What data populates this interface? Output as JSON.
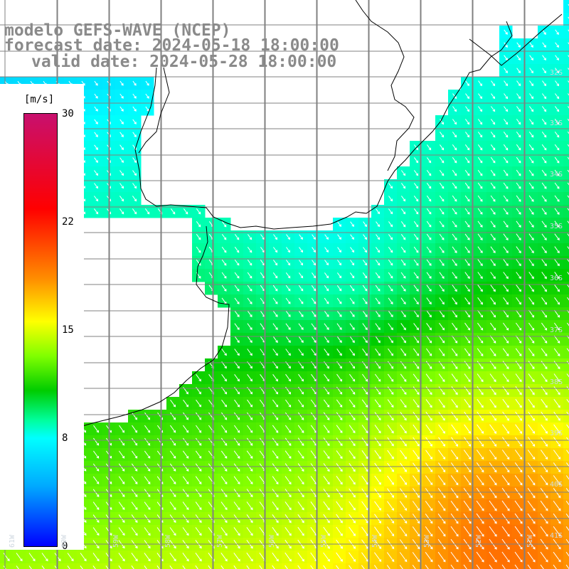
{
  "title": {
    "line1": "modelo GEFS-WAVE (NCEP)",
    "line2": "forecast date: 2024-05-18 18:00:00",
    "line3": "valid date: 2024-05-28 18:00:00"
  },
  "colorbar": {
    "unit": "[m/s]",
    "ticks": [
      {
        "label": "30",
        "value": 30
      },
      {
        "label": "22",
        "value": 22
      },
      {
        "label": "15",
        "value": 15
      },
      {
        "label": "8",
        "value": 8
      },
      {
        "label": "0",
        "value": 0
      }
    ],
    "range": [
      0,
      30
    ],
    "colors": [
      "#0000ff",
      "#00aaff",
      "#00ffff",
      "#00ffa0",
      "#00cc00",
      "#80ff00",
      "#ffff00",
      "#ff8c00",
      "#ff0000",
      "#c8106e"
    ]
  },
  "map": {
    "lat_labels": [
      "32S",
      "33S",
      "34S",
      "35S",
      "36S",
      "37S",
      "38S",
      "39S",
      "40S",
      "41S"
    ],
    "lon_labels": [
      "61W",
      "60W",
      "59W",
      "58W",
      "57W",
      "56W",
      "55W",
      "54W",
      "53W",
      "52W",
      "51W"
    ],
    "land_color": "#ffffff",
    "grid_color": "#808080",
    "coast_color": "#000000",
    "arrow_color": "#ffffff",
    "wind_direction": "northwest to southeast"
  }
}
